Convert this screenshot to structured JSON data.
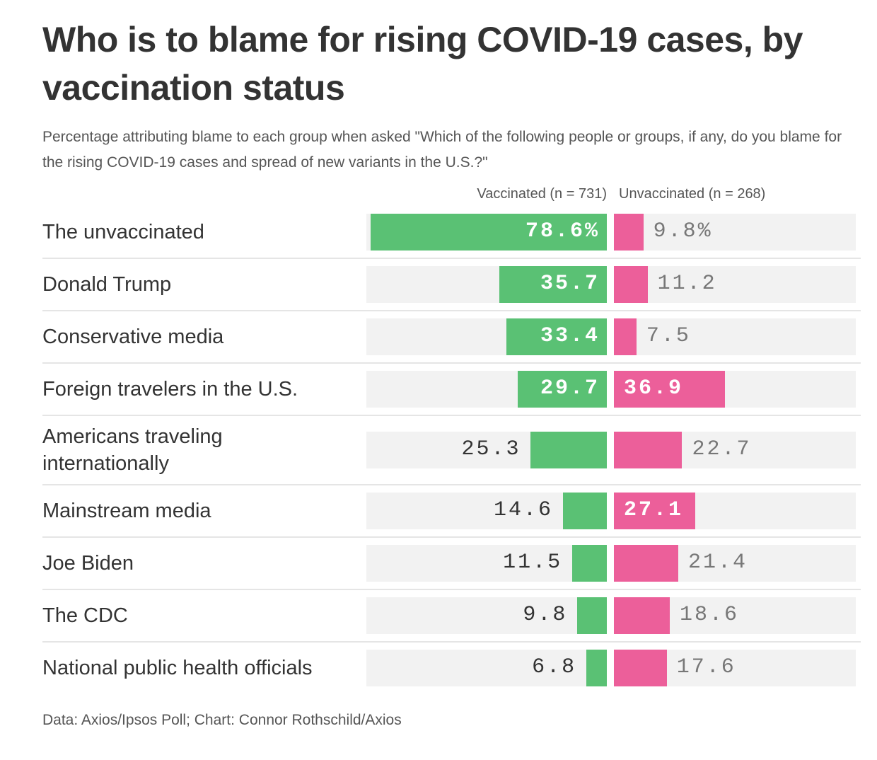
{
  "title": "Who is to blame for rising COVID-19 cases, by vaccination status",
  "subtitle": "Percentage attributing blame to each group when asked \"Which of the following people or groups, if any, do you blame for the rising COVID-19 cases and spread of new variants in the U.S.?\"",
  "source": "Data: Axios/Ipsos Poll; Chart: Connor Rothschild/Axios",
  "colors": {
    "vaccinated": "#5ac174",
    "unvaccinated": "#ec5f9a",
    "track": "#f2f2f2"
  },
  "chart_data": {
    "type": "bar",
    "orientation": "horizontal-diverging",
    "title": "Who is to blame for rising COVID-19 cases, by vaccination status",
    "categories": [
      "The unvaccinated",
      "Donald Trump",
      "Conservative media",
      "Foreign travelers in the U.S.",
      "Americans traveling internationally",
      "Mainstream media",
      "Joe Biden",
      "The CDC",
      "National public health officials"
    ],
    "series": [
      {
        "name": "Vaccinated (n = 731)",
        "values": [
          78.6,
          35.7,
          33.4,
          29.7,
          25.3,
          14.6,
          11.5,
          9.8,
          6.8
        ],
        "labels": [
          "78.6%",
          "35.7",
          "33.4",
          "29.7",
          "25.3",
          "14.6",
          "11.5",
          "9.8",
          "6.8"
        ]
      },
      {
        "name": "Unvaccinated (n = 268)",
        "values": [
          9.8,
          11.2,
          7.5,
          36.9,
          22.7,
          27.1,
          21.4,
          18.6,
          17.6
        ],
        "labels": [
          "9.8%",
          "11.2",
          "7.5",
          "36.9",
          "22.7",
          "27.1",
          "21.4",
          "18.6",
          "17.6"
        ]
      }
    ],
    "xlim": [
      0,
      80
    ],
    "unit": "%"
  }
}
